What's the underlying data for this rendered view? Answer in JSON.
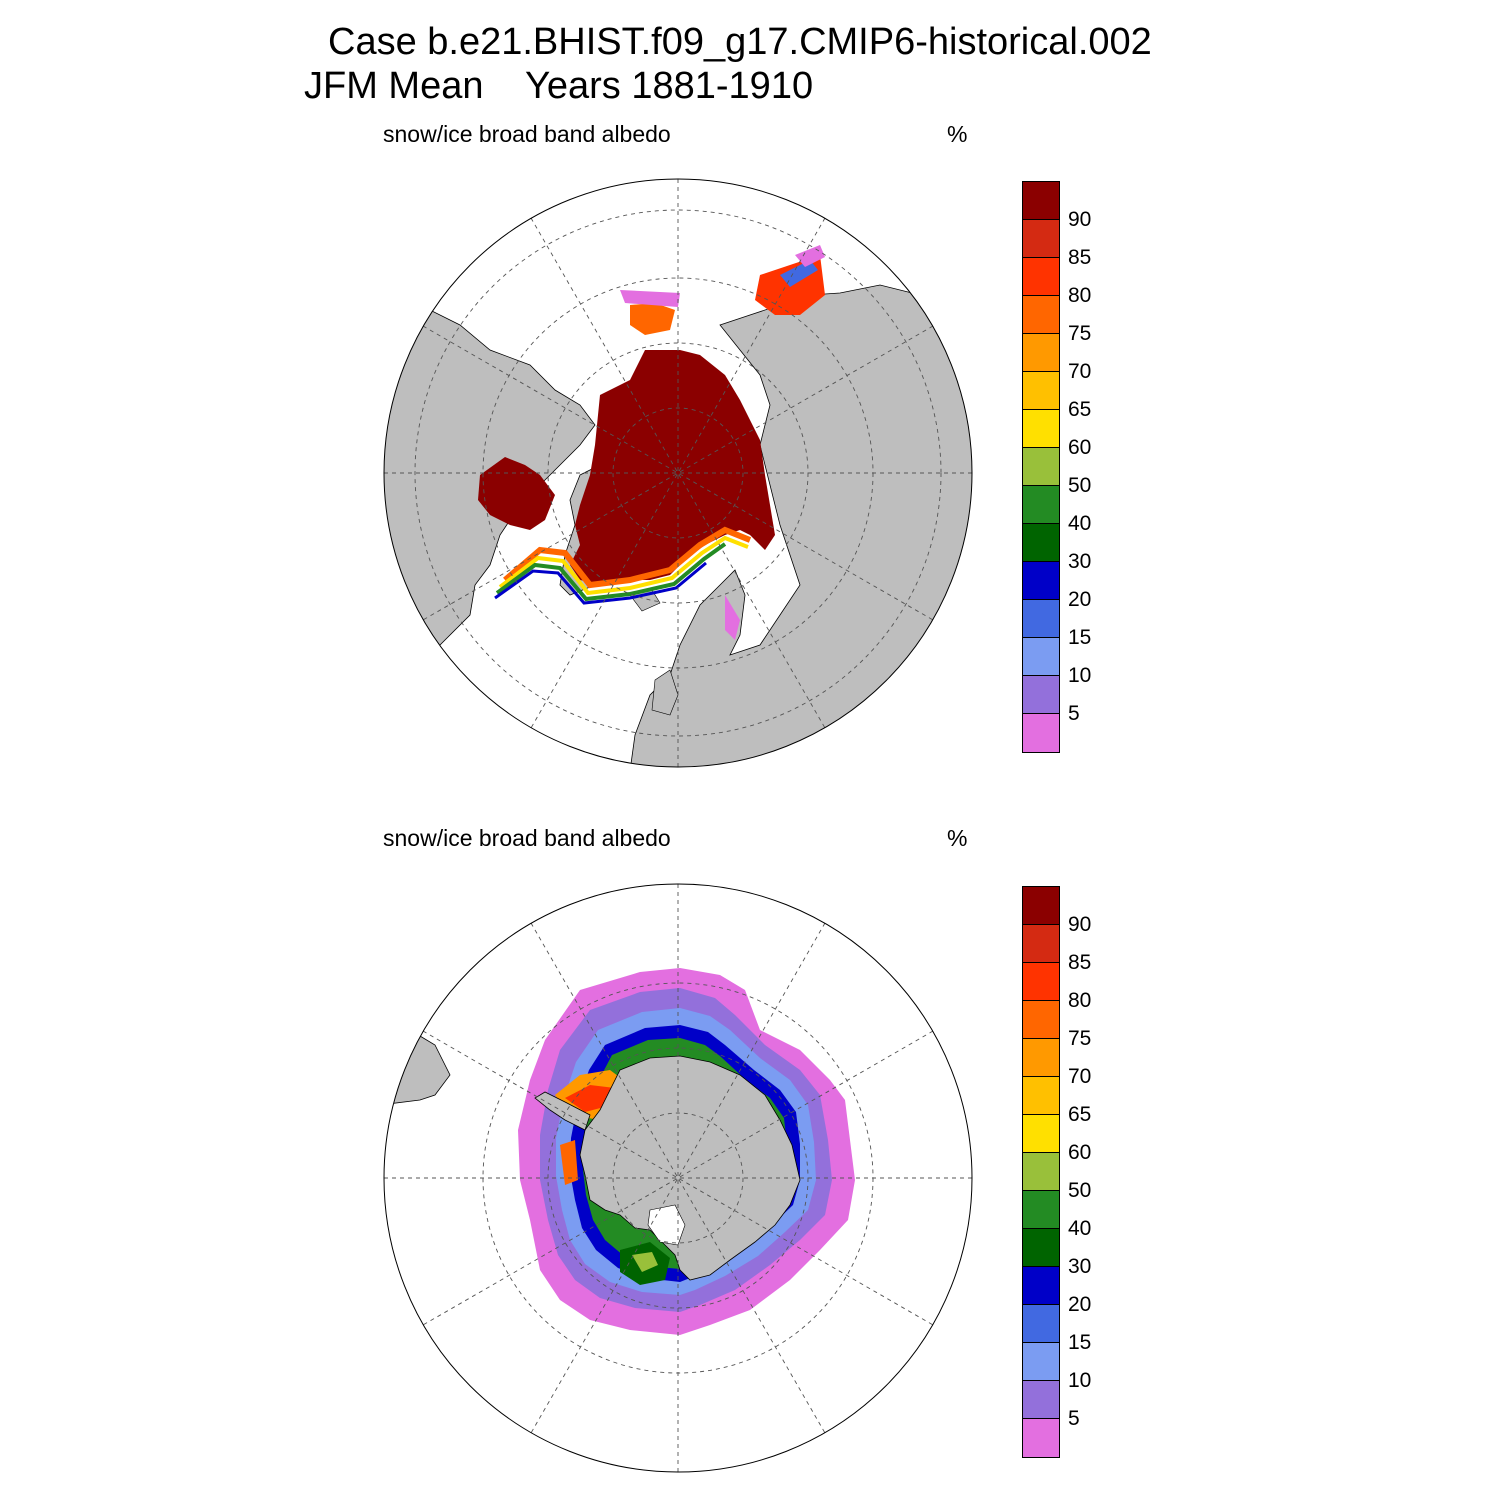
{
  "title": {
    "line1": "Case b.e21.BHIST.f09_g17.CMIP6-historical.002",
    "line2": "JFM Mean    Years 1881-1910"
  },
  "panels": [
    {
      "id": "north",
      "label": "snow/ice broad band albedo",
      "unit": "%"
    },
    {
      "id": "south",
      "label": "snow/ice broad band albedo",
      "unit": "%"
    }
  ],
  "colorbar": {
    "labels": [
      "90",
      "85",
      "80",
      "75",
      "70",
      "65",
      "60",
      "50",
      "40",
      "30",
      "20",
      "15",
      "10",
      "5"
    ],
    "colors": [
      "#8b0000",
      "#d42a12",
      "#ff3300",
      "#ff6600",
      "#ff9900",
      "#ffc000",
      "#ffe000",
      "#99c03a",
      "#238b23",
      "#006400",
      "#0000c8",
      "#4169e1",
      "#7b9cf2",
      "#9370db",
      "#e36fe0"
    ]
  },
  "colors": {
    "land": "#bebebe",
    "ocean": "#ffffff",
    "grid": "#555555"
  }
}
